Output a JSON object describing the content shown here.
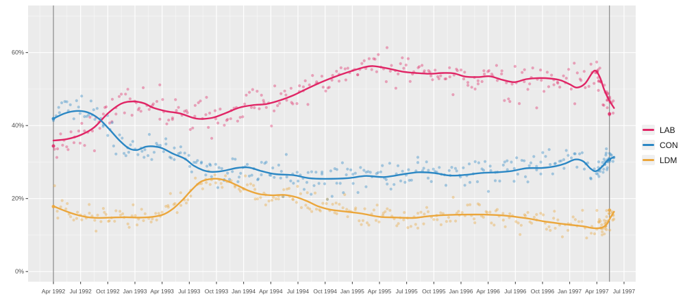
{
  "chart_data": {
    "type": "scatter",
    "subtype": "scatter-with-smoothed-trend-lines",
    "title": "",
    "xlabel": "",
    "ylabel": "",
    "x_axis": {
      "tick_labels": [
        "Apr 1992",
        "Jul 1992",
        "Oct 1992",
        "Jan 1993",
        "Apr 1993",
        "Jul 1993",
        "Oct 1993",
        "Jan 1994",
        "Apr 1994",
        "Jul 1994",
        "Oct 1994",
        "Jan 1995",
        "Apr 1995",
        "Jul 1995",
        "Oct 1995",
        "Jan 1996",
        "Apr 1996",
        "Jul 1996",
        "Oct 1996",
        "Jan 1997",
        "Apr 1997",
        "Jul 1997"
      ],
      "months_per_tick": 3,
      "range_months": [
        -2.8,
        64.3
      ]
    },
    "y_axis": {
      "ticks": [
        {
          "label": "0%",
          "value": 0
        },
        {
          "label": "20%",
          "value": 20
        },
        {
          "label": "40%",
          "value": 40
        },
        {
          "label": "60%",
          "value": 60
        }
      ],
      "minor_values": [
        10,
        30,
        50,
        70
      ],
      "range_pct": [
        -2.9,
        72.9
      ]
    },
    "reference_lines_months": [
      0,
      61.4
    ],
    "colors": {
      "panel_bg": "#ebebeb",
      "grid": "#ffffff",
      "reference_line": "#636363",
      "axis_text": "#4d4d4d"
    },
    "series": [
      {
        "name": "LAB",
        "color": "#e02565",
        "smooth_points": [
          [
            0,
            35.9
          ],
          [
            1.5,
            36.3
          ],
          [
            3,
            37.4
          ],
          [
            4.5,
            39.5
          ],
          [
            6,
            43.3
          ],
          [
            7.5,
            46.0
          ],
          [
            8.8,
            46.6
          ],
          [
            10,
            46.1
          ],
          [
            11,
            44.9
          ],
          [
            12.5,
            43.9
          ],
          [
            14,
            43.3
          ],
          [
            15.8,
            41.9
          ],
          [
            17.5,
            42.1
          ],
          [
            19,
            43.4
          ],
          [
            20.5,
            44.9
          ],
          [
            22,
            45.6
          ],
          [
            23.5,
            45.9
          ],
          [
            25,
            46.9
          ],
          [
            26.5,
            48.3
          ],
          [
            28,
            50.1
          ],
          [
            29.5,
            51.8
          ],
          [
            31,
            53.3
          ],
          [
            32.5,
            54.6
          ],
          [
            34.2,
            55.9
          ],
          [
            35.3,
            56.3
          ],
          [
            36.8,
            55.7
          ],
          [
            38.5,
            54.8
          ],
          [
            40,
            54.4
          ],
          [
            41.5,
            54.2
          ],
          [
            43,
            54.4
          ],
          [
            44.2,
            54.3
          ],
          [
            45.5,
            53.4
          ],
          [
            47,
            53.3
          ],
          [
            48.2,
            53.5
          ],
          [
            49.6,
            52.5
          ],
          [
            50.9,
            51.9
          ],
          [
            52.2,
            52.7
          ],
          [
            53.5,
            53.0
          ],
          [
            54.8,
            52.9
          ],
          [
            56,
            52.4
          ],
          [
            57,
            51.3
          ],
          [
            57.8,
            50.4
          ],
          [
            58.7,
            51.5
          ],
          [
            59.7,
            55.0
          ],
          [
            60.3,
            53.4
          ],
          [
            60.8,
            49.9
          ],
          [
            61.3,
            47.2
          ],
          [
            61.9,
            44.8
          ]
        ],
        "scatter": {
          "seed": 11,
          "sd": 2.5,
          "step_months": 0.23,
          "alpha": 0.38
        },
        "campaign_cluster": {
          "seed": 101,
          "n": 27,
          "t_range": [
            59.9,
            61.9
          ],
          "sd": 2.5
        },
        "election_result_points": [
          [
            0,
            34.4
          ],
          [
            61.4,
            43.2
          ]
        ]
      },
      {
        "name": "CON",
        "color": "#2b87c4",
        "smooth_points": [
          [
            0,
            41.9
          ],
          [
            1.2,
            43.3
          ],
          [
            2.5,
            44.0
          ],
          [
            3.8,
            43.6
          ],
          [
            5,
            41.9
          ],
          [
            6.2,
            38.9
          ],
          [
            7.3,
            35.9
          ],
          [
            8.3,
            33.8
          ],
          [
            9.2,
            33.3
          ],
          [
            10.2,
            34.2
          ],
          [
            11,
            34.3
          ],
          [
            12,
            33.8
          ],
          [
            13.2,
            32.3
          ],
          [
            14.5,
            30.9
          ],
          [
            15.5,
            29.0
          ],
          [
            16.5,
            27.8
          ],
          [
            17.5,
            27.3
          ],
          [
            18.8,
            27.6
          ],
          [
            20.3,
            28.4
          ],
          [
            21.6,
            28.5
          ],
          [
            23,
            27.5
          ],
          [
            24.5,
            26.7
          ],
          [
            26.5,
            26.4
          ],
          [
            28.2,
            25.6
          ],
          [
            30,
            25.4
          ],
          [
            32.5,
            25.6
          ],
          [
            34.5,
            26.2
          ],
          [
            36.5,
            25.9
          ],
          [
            38.7,
            26.7
          ],
          [
            40.3,
            27.2
          ],
          [
            42,
            27.0
          ],
          [
            43.8,
            26.3
          ],
          [
            45.5,
            26.5
          ],
          [
            47.2,
            27.0
          ],
          [
            49,
            27.2
          ],
          [
            50.5,
            27.5
          ],
          [
            52.2,
            28.3
          ],
          [
            54,
            28.4
          ],
          [
            55.5,
            28.9
          ],
          [
            56.5,
            29.6
          ],
          [
            57.6,
            30.7
          ],
          [
            58.5,
            30.2
          ],
          [
            59.3,
            28.2
          ],
          [
            59.9,
            27.5
          ],
          [
            60.6,
            28.8
          ],
          [
            61.2,
            30.5
          ],
          [
            61.9,
            31.4
          ]
        ],
        "scatter": {
          "seed": 23,
          "sd": 2.1,
          "step_months": 0.23,
          "alpha": 0.38
        },
        "campaign_cluster": {
          "seed": 202,
          "n": 27,
          "t_range": [
            59.9,
            61.9
          ],
          "sd": 1.1
        },
        "election_result_points": [
          [
            0,
            41.9
          ],
          [
            61.4,
            30.7
          ]
        ]
      },
      {
        "name": "LDM",
        "color": "#eba63b",
        "smooth_points": [
          [
            0,
            17.9
          ],
          [
            1.2,
            16.7
          ],
          [
            2.5,
            15.6
          ],
          [
            3.8,
            14.9
          ],
          [
            5,
            14.7
          ],
          [
            6.5,
            14.8
          ],
          [
            8,
            14.9
          ],
          [
            9.5,
            14.8
          ],
          [
            11,
            15.0
          ],
          [
            12.2,
            15.7
          ],
          [
            13.2,
            17.2
          ],
          [
            14.2,
            19.5
          ],
          [
            15.2,
            22.2
          ],
          [
            16.2,
            24.5
          ],
          [
            17.2,
            25.3
          ],
          [
            18.2,
            25.4
          ],
          [
            19.2,
            24.8
          ],
          [
            20.3,
            23.6
          ],
          [
            21.5,
            22.2
          ],
          [
            22.8,
            21.2
          ],
          [
            24.2,
            20.9
          ],
          [
            25.5,
            21.0
          ],
          [
            26.8,
            20.4
          ],
          [
            28,
            19.3
          ],
          [
            29.2,
            17.9
          ],
          [
            30.5,
            17.0
          ],
          [
            32,
            16.5
          ],
          [
            34,
            15.9
          ],
          [
            36,
            15.0
          ],
          [
            38,
            14.8
          ],
          [
            39.8,
            14.7
          ],
          [
            41.5,
            15.2
          ],
          [
            43.5,
            15.5
          ],
          [
            45.5,
            15.6
          ],
          [
            47.5,
            15.6
          ],
          [
            49.5,
            15.4
          ],
          [
            51,
            15.0
          ],
          [
            52.5,
            14.5
          ],
          [
            54,
            13.8
          ],
          [
            55.5,
            13.3
          ],
          [
            57,
            12.8
          ],
          [
            58.5,
            12.4
          ],
          [
            59.6,
            11.9
          ],
          [
            60.5,
            12.0
          ],
          [
            61.1,
            13.0
          ],
          [
            61.5,
            14.8
          ],
          [
            61.9,
            16.4
          ]
        ],
        "scatter": {
          "seed": 37,
          "sd": 1.7,
          "step_months": 0.23,
          "alpha": 0.38
        },
        "campaign_cluster": {
          "seed": 303,
          "n": 27,
          "t_range": [
            59.9,
            61.9
          ],
          "sd": 1.7
        },
        "election_result_points": [
          [
            0,
            17.8
          ],
          [
            61.4,
            16.8
          ]
        ]
      }
    ],
    "legend_position": "right"
  }
}
